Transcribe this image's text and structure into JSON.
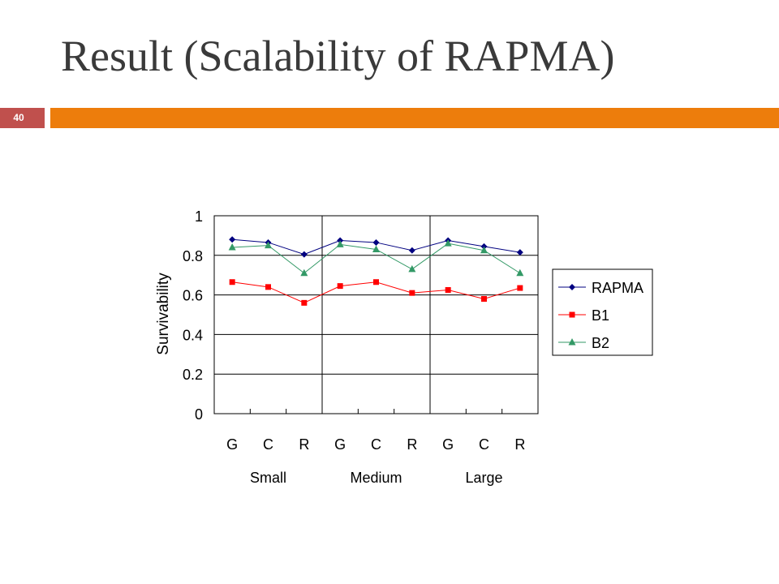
{
  "slide": {
    "title": "Result (Scalability of RAPMA)",
    "page_number": "40"
  },
  "colors": {
    "accent_bar": "#ed7d0c",
    "page_badge": "#c0504d"
  },
  "chart_data": {
    "type": "line",
    "title": "",
    "xlabel": "",
    "ylabel": "Survivability",
    "ylim": [
      0,
      1
    ],
    "yticks": [
      "0",
      "0.2",
      "0.4",
      "0.6",
      "0.8",
      "1"
    ],
    "grid": true,
    "legend_position": "right",
    "categories": [
      "G",
      "C",
      "R",
      "G",
      "C",
      "R",
      "G",
      "C",
      "R"
    ],
    "groups": [
      {
        "label": "Small",
        "categories": [
          "G",
          "C",
          "R"
        ]
      },
      {
        "label": "Medium",
        "categories": [
          "G",
          "C",
          "R"
        ]
      },
      {
        "label": "Large",
        "categories": [
          "G",
          "C",
          "R"
        ]
      }
    ],
    "series": [
      {
        "name": "RAPMA",
        "color": "#000080",
        "marker": "diamond",
        "values": [
          0.88,
          0.865,
          0.805,
          0.875,
          0.865,
          0.825,
          0.875,
          0.845,
          0.815
        ]
      },
      {
        "name": "B1",
        "color": "#ff0000",
        "marker": "square",
        "values": [
          0.665,
          0.64,
          0.56,
          0.645,
          0.665,
          0.61,
          0.625,
          0.58,
          0.635
        ]
      },
      {
        "name": "B2",
        "color": "#339966",
        "marker": "triangle",
        "values": [
          0.84,
          0.85,
          0.71,
          0.855,
          0.83,
          0.73,
          0.86,
          0.825,
          0.71
        ]
      }
    ]
  }
}
